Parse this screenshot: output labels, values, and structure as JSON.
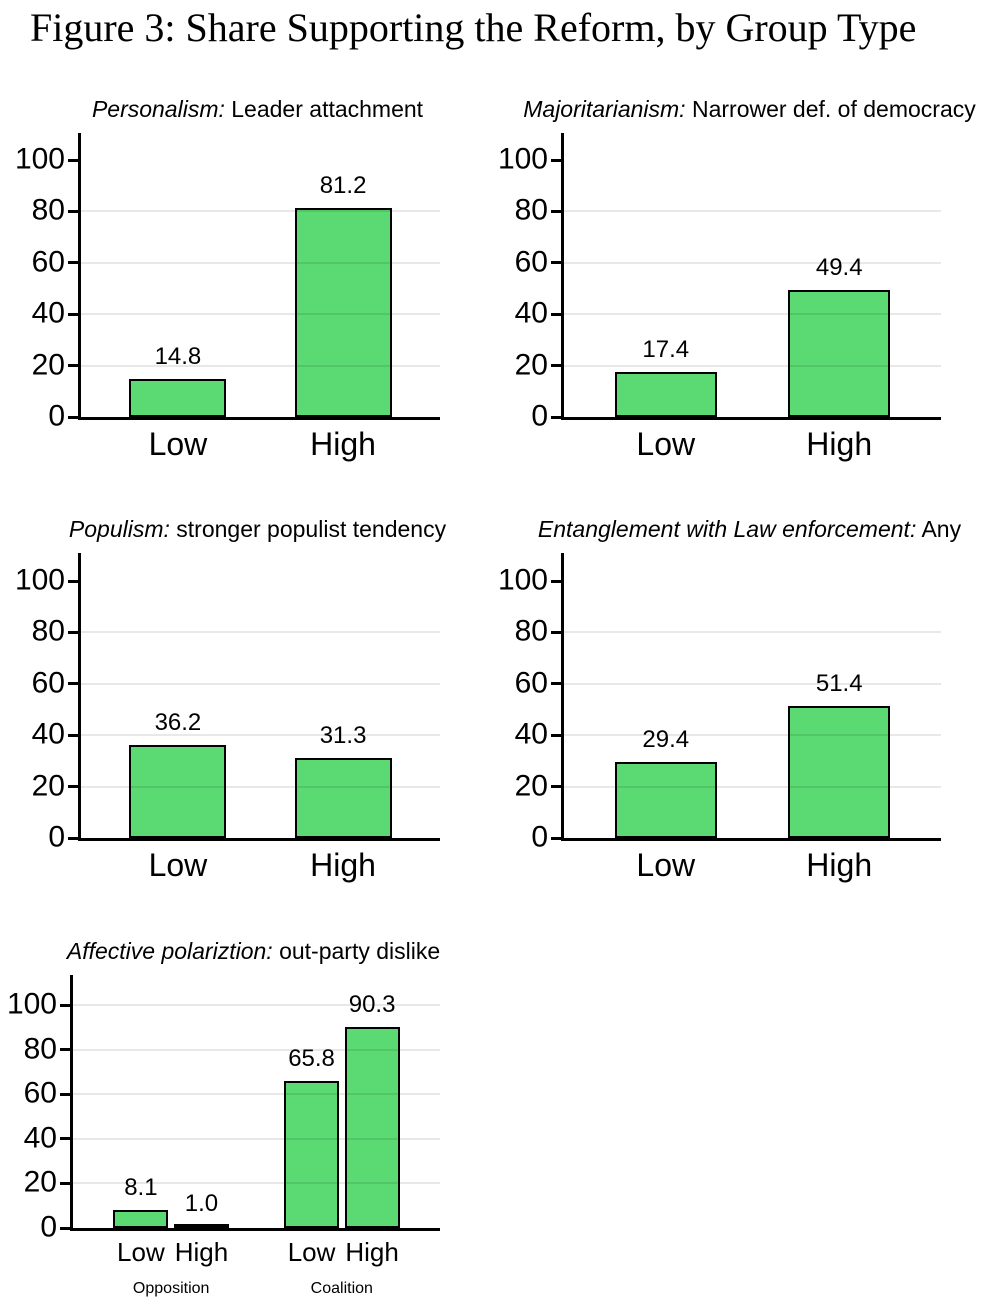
{
  "figure": {
    "title": "Figure 3: Share Supporting the Reform, by Group Type"
  },
  "chart_data": {
    "type": "bar",
    "ylim": [
      0,
      100
    ],
    "ylabel": "",
    "xlabel": "",
    "legend": "none",
    "grid": "horizontal",
    "colors": {
      "bar_fill": "#5bd973",
      "bar_border": "#000000",
      "gridline": "#e8e8e8",
      "axis": "#000000"
    },
    "panels": [
      {
        "title_italic": "Personalism:",
        "title_rest": " Leader attachment",
        "yticks": [
          0,
          20,
          40,
          60,
          80,
          100
        ],
        "gridlines": [
          20,
          40,
          60,
          80
        ],
        "bars": [
          {
            "label": "Low",
            "value": 14.8,
            "value_label": "14.8"
          },
          {
            "label": "High",
            "value": 81.2,
            "value_label": "81.2"
          }
        ]
      },
      {
        "title_italic": "Majoritarianism:",
        "title_rest": " Narrower def. of democracy",
        "yticks": [
          0,
          20,
          40,
          60,
          80,
          100
        ],
        "gridlines": [
          20,
          40,
          60,
          80
        ],
        "bars": [
          {
            "label": "Low",
            "value": 17.4,
            "value_label": "17.4"
          },
          {
            "label": "High",
            "value": 49.4,
            "value_label": "49.4"
          }
        ]
      },
      {
        "title_italic": "Populism:",
        "title_rest": " stronger populist tendency",
        "yticks": [
          0,
          20,
          40,
          60,
          80,
          100
        ],
        "gridlines": [
          20,
          40,
          60,
          80
        ],
        "bars": [
          {
            "label": "Low",
            "value": 36.2,
            "value_label": "36.2"
          },
          {
            "label": "High",
            "value": 31.3,
            "value_label": "31.3"
          }
        ]
      },
      {
        "title_italic": "Entanglement with Law enforcement:",
        "title_rest": " Any",
        "yticks": [
          0,
          20,
          40,
          60,
          80,
          100
        ],
        "gridlines": [
          20,
          40,
          60,
          80
        ],
        "bars": [
          {
            "label": "Low",
            "value": 29.4,
            "value_label": "29.4"
          },
          {
            "label": "High",
            "value": 51.4,
            "value_label": "51.4"
          }
        ]
      },
      {
        "title_italic": "Affective polariztion:",
        "title_rest": " out-party dislike",
        "yticks": [
          0,
          20,
          40,
          60,
          80,
          100
        ],
        "gridlines": [
          20,
          40,
          60,
          80,
          100
        ],
        "groups": [
          {
            "label": "Opposition",
            "bars": [
              {
                "label": "Low",
                "value": 8.1,
                "value_label": "8.1"
              },
              {
                "label": "High",
                "value": 1.0,
                "value_label": "1.0"
              }
            ]
          },
          {
            "label": "Coalition",
            "bars": [
              {
                "label": "Low",
                "value": 65.8,
                "value_label": "65.8"
              },
              {
                "label": "High",
                "value": 90.3,
                "value_label": "90.3"
              }
            ]
          }
        ]
      }
    ]
  }
}
